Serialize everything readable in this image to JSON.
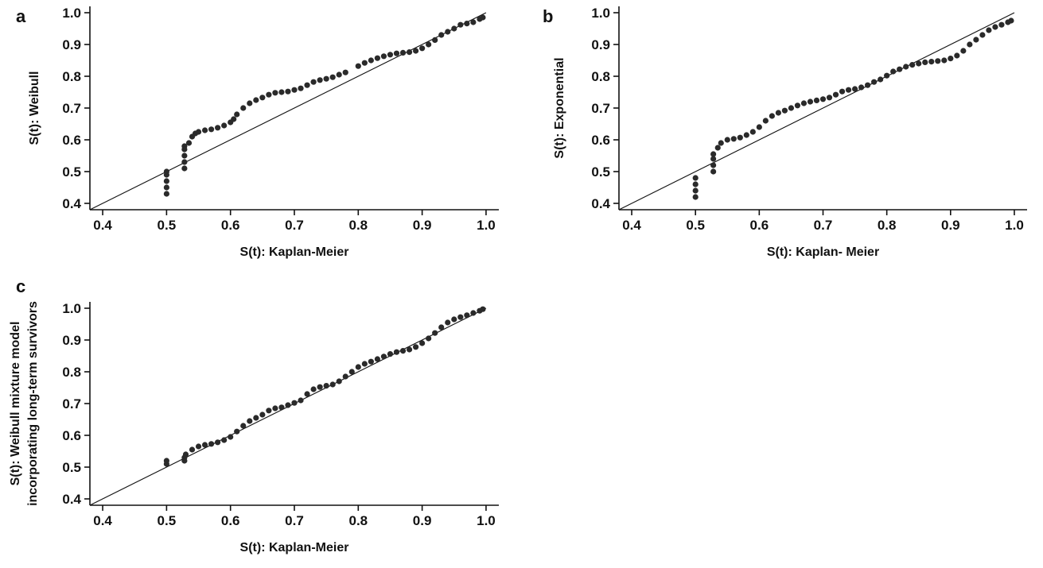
{
  "chart_data": [
    {
      "type": "scatter",
      "panel": "a",
      "xlabel": "S(t): Kaplan-Meier",
      "ylabel": [
        "S(t): Weibull"
      ],
      "xlim": [
        0.38,
        1.02
      ],
      "ylim": [
        0.38,
        1.02
      ],
      "xticks": [
        "0.4",
        "0.5",
        "0.6",
        "0.7",
        "0.8",
        "0.9",
        "1.0"
      ],
      "yticks": [
        "0.4",
        "0.5",
        "0.6",
        "0.7",
        "0.8",
        "0.9",
        "1.0"
      ],
      "reference_line": [
        [
          0.38,
          0.38
        ],
        [
          1.0,
          1.0
        ]
      ],
      "points": [
        [
          0.5,
          0.43
        ],
        [
          0.5,
          0.45
        ],
        [
          0.5,
          0.47
        ],
        [
          0.5,
          0.49
        ],
        [
          0.5,
          0.5
        ],
        [
          0.528,
          0.51
        ],
        [
          0.528,
          0.53
        ],
        [
          0.528,
          0.55
        ],
        [
          0.528,
          0.57
        ],
        [
          0.528,
          0.58
        ],
        [
          0.535,
          0.59
        ],
        [
          0.54,
          0.61
        ],
        [
          0.545,
          0.62
        ],
        [
          0.55,
          0.625
        ],
        [
          0.56,
          0.63
        ],
        [
          0.57,
          0.633
        ],
        [
          0.58,
          0.638
        ],
        [
          0.59,
          0.645
        ],
        [
          0.6,
          0.655
        ],
        [
          0.605,
          0.665
        ],
        [
          0.61,
          0.68
        ],
        [
          0.62,
          0.7
        ],
        [
          0.63,
          0.715
        ],
        [
          0.64,
          0.725
        ],
        [
          0.65,
          0.733
        ],
        [
          0.66,
          0.742
        ],
        [
          0.67,
          0.748
        ],
        [
          0.68,
          0.75
        ],
        [
          0.69,
          0.752
        ],
        [
          0.7,
          0.757
        ],
        [
          0.71,
          0.762
        ],
        [
          0.72,
          0.772
        ],
        [
          0.73,
          0.782
        ],
        [
          0.74,
          0.788
        ],
        [
          0.75,
          0.792
        ],
        [
          0.76,
          0.797
        ],
        [
          0.77,
          0.805
        ],
        [
          0.78,
          0.812
        ],
        [
          0.8,
          0.832
        ],
        [
          0.81,
          0.842
        ],
        [
          0.82,
          0.85
        ],
        [
          0.83,
          0.857
        ],
        [
          0.84,
          0.863
        ],
        [
          0.85,
          0.868
        ],
        [
          0.86,
          0.872
        ],
        [
          0.87,
          0.874
        ],
        [
          0.88,
          0.876
        ],
        [
          0.89,
          0.88
        ],
        [
          0.9,
          0.888
        ],
        [
          0.91,
          0.9
        ],
        [
          0.92,
          0.914
        ],
        [
          0.93,
          0.93
        ],
        [
          0.94,
          0.94
        ],
        [
          0.95,
          0.95
        ],
        [
          0.96,
          0.962
        ],
        [
          0.97,
          0.966
        ],
        [
          0.98,
          0.97
        ],
        [
          0.99,
          0.98
        ],
        [
          0.995,
          0.985
        ]
      ]
    },
    {
      "type": "scatter",
      "panel": "b",
      "xlabel": "S(t): Kaplan- Meier",
      "ylabel": [
        "S(t): Exponential"
      ],
      "xlim": [
        0.38,
        1.02
      ],
      "ylim": [
        0.38,
        1.02
      ],
      "xticks": [
        "0.4",
        "0.5",
        "0.6",
        "0.7",
        "0.8",
        "0.9",
        "1.0"
      ],
      "yticks": [
        "0.4",
        "0.5",
        "0.6",
        "0.7",
        "0.8",
        "0.9",
        "1.0"
      ],
      "reference_line": [
        [
          0.38,
          0.38
        ],
        [
          1.0,
          1.0
        ]
      ],
      "points": [
        [
          0.5,
          0.42
        ],
        [
          0.5,
          0.44
        ],
        [
          0.5,
          0.46
        ],
        [
          0.5,
          0.48
        ],
        [
          0.528,
          0.5
        ],
        [
          0.528,
          0.52
        ],
        [
          0.528,
          0.54
        ],
        [
          0.528,
          0.555
        ],
        [
          0.535,
          0.575
        ],
        [
          0.54,
          0.59
        ],
        [
          0.55,
          0.6
        ],
        [
          0.56,
          0.603
        ],
        [
          0.57,
          0.607
        ],
        [
          0.58,
          0.615
        ],
        [
          0.59,
          0.625
        ],
        [
          0.6,
          0.64
        ],
        [
          0.61,
          0.66
        ],
        [
          0.62,
          0.675
        ],
        [
          0.63,
          0.685
        ],
        [
          0.64,
          0.692
        ],
        [
          0.65,
          0.7
        ],
        [
          0.66,
          0.708
        ],
        [
          0.67,
          0.715
        ],
        [
          0.68,
          0.72
        ],
        [
          0.69,
          0.724
        ],
        [
          0.7,
          0.728
        ],
        [
          0.71,
          0.733
        ],
        [
          0.72,
          0.742
        ],
        [
          0.73,
          0.752
        ],
        [
          0.74,
          0.757
        ],
        [
          0.75,
          0.76
        ],
        [
          0.76,
          0.765
        ],
        [
          0.77,
          0.772
        ],
        [
          0.78,
          0.782
        ],
        [
          0.79,
          0.79
        ],
        [
          0.8,
          0.802
        ],
        [
          0.81,
          0.815
        ],
        [
          0.82,
          0.822
        ],
        [
          0.83,
          0.83
        ],
        [
          0.84,
          0.836
        ],
        [
          0.85,
          0.84
        ],
        [
          0.86,
          0.844
        ],
        [
          0.87,
          0.846
        ],
        [
          0.88,
          0.848
        ],
        [
          0.89,
          0.85
        ],
        [
          0.9,
          0.856
        ],
        [
          0.91,
          0.865
        ],
        [
          0.92,
          0.88
        ],
        [
          0.93,
          0.9
        ],
        [
          0.94,
          0.915
        ],
        [
          0.95,
          0.93
        ],
        [
          0.96,
          0.945
        ],
        [
          0.97,
          0.955
        ],
        [
          0.98,
          0.962
        ],
        [
          0.99,
          0.97
        ],
        [
          0.995,
          0.975
        ]
      ]
    },
    {
      "type": "scatter",
      "panel": "c",
      "xlabel": "S(t): Kaplan-Meier",
      "ylabel": [
        "S(t): Weibull mixture model",
        "incorporating long-term survivors"
      ],
      "xlim": [
        0.38,
        1.02
      ],
      "ylim": [
        0.38,
        1.02
      ],
      "xticks": [
        "0.4",
        "0.5",
        "0.6",
        "0.7",
        "0.8",
        "0.9",
        "1.0"
      ],
      "yticks": [
        "0.4",
        "0.5",
        "0.6",
        "0.7",
        "0.8",
        "0.9",
        "1.0"
      ],
      "reference_line": [
        [
          0.38,
          0.38
        ],
        [
          1.0,
          1.0
        ]
      ],
      "points": [
        [
          0.5,
          0.51
        ],
        [
          0.5,
          0.52
        ],
        [
          0.528,
          0.52
        ],
        [
          0.528,
          0.53
        ],
        [
          0.53,
          0.54
        ],
        [
          0.54,
          0.555
        ],
        [
          0.55,
          0.565
        ],
        [
          0.56,
          0.57
        ],
        [
          0.57,
          0.573
        ],
        [
          0.58,
          0.578
        ],
        [
          0.59,
          0.585
        ],
        [
          0.6,
          0.595
        ],
        [
          0.61,
          0.612
        ],
        [
          0.62,
          0.63
        ],
        [
          0.63,
          0.645
        ],
        [
          0.64,
          0.655
        ],
        [
          0.65,
          0.665
        ],
        [
          0.66,
          0.678
        ],
        [
          0.67,
          0.685
        ],
        [
          0.68,
          0.688
        ],
        [
          0.69,
          0.695
        ],
        [
          0.7,
          0.702
        ],
        [
          0.71,
          0.71
        ],
        [
          0.72,
          0.73
        ],
        [
          0.73,
          0.745
        ],
        [
          0.74,
          0.752
        ],
        [
          0.75,
          0.756
        ],
        [
          0.76,
          0.76
        ],
        [
          0.77,
          0.77
        ],
        [
          0.78,
          0.785
        ],
        [
          0.79,
          0.8
        ],
        [
          0.8,
          0.815
        ],
        [
          0.81,
          0.825
        ],
        [
          0.82,
          0.832
        ],
        [
          0.83,
          0.84
        ],
        [
          0.84,
          0.848
        ],
        [
          0.85,
          0.856
        ],
        [
          0.86,
          0.862
        ],
        [
          0.87,
          0.866
        ],
        [
          0.88,
          0.87
        ],
        [
          0.89,
          0.878
        ],
        [
          0.9,
          0.89
        ],
        [
          0.91,
          0.905
        ],
        [
          0.92,
          0.922
        ],
        [
          0.93,
          0.94
        ],
        [
          0.94,
          0.955
        ],
        [
          0.95,
          0.965
        ],
        [
          0.96,
          0.972
        ],
        [
          0.97,
          0.978
        ],
        [
          0.98,
          0.985
        ],
        [
          0.99,
          0.992
        ],
        [
          0.995,
          0.997
        ]
      ]
    }
  ]
}
